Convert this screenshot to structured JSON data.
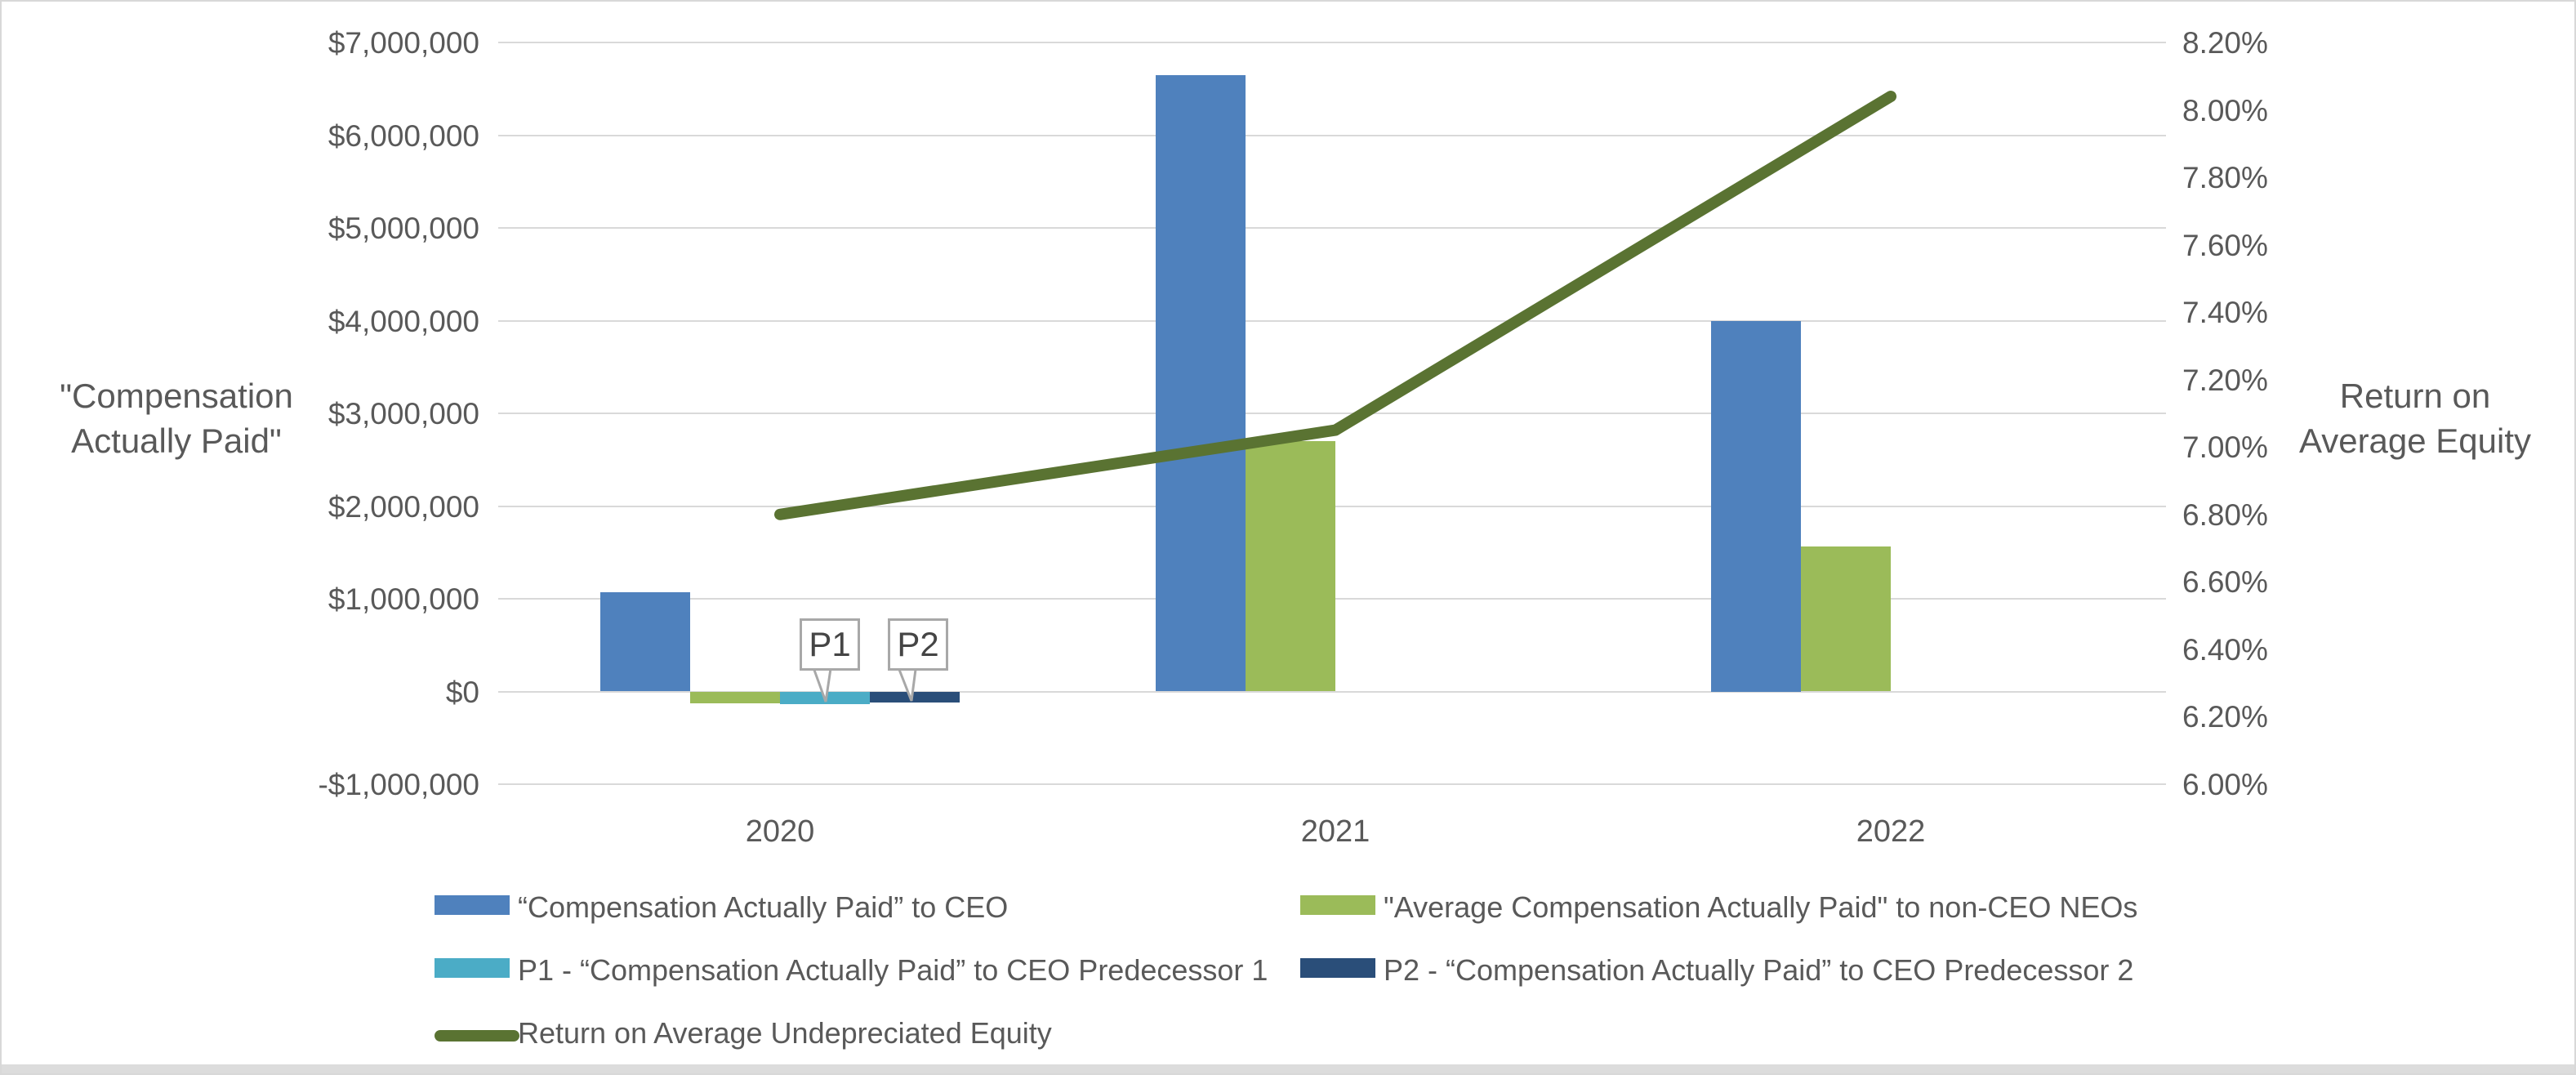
{
  "colors": {
    "ceo_bar": "#4F81BD",
    "neo_bar": "#9BBB59",
    "p1_bar": "#4BACC6",
    "p2_bar": "#2A4E79",
    "roe_line": "#5A7332",
    "gridline": "#D9D9D9",
    "text": "#595959",
    "callout_border": "#A8A8A8",
    "frame": "#D8D8D8",
    "bottom_strip": "#DCDCDC"
  },
  "chart_data": {
    "type": "bar",
    "subtype": "clustered-bar-with-line-dual-axis",
    "categories": [
      "2020",
      "2021",
      "2022"
    ],
    "series": [
      {
        "key": "ceo",
        "kind": "bar",
        "name": "“Compensation Actually Paid” to CEO",
        "color": "#4F81BD",
        "axis": "left",
        "values": [
          1070000,
          6650000,
          4000000
        ]
      },
      {
        "key": "neo",
        "kind": "bar",
        "name": "\"Average Compensation Actually Paid\" to non-CEO NEOs",
        "color": "#9BBB59",
        "axis": "left",
        "values": [
          -130000,
          2700000,
          1560000
        ]
      },
      {
        "key": "p1",
        "kind": "bar",
        "name": "P1 - “Compensation Actually Paid” to CEO Predecessor 1",
        "color": "#4BACC6",
        "axis": "left",
        "values": [
          -140000,
          0,
          0
        ]
      },
      {
        "key": "p2",
        "kind": "bar",
        "name": "P2 - “Compensation Actually Paid” to CEO Predecessor 2",
        "color": "#2A4E79",
        "axis": "left",
        "values": [
          -120000,
          0,
          0
        ]
      },
      {
        "key": "roe",
        "kind": "line",
        "name": "Return on Average Undepreciated Equity",
        "color": "#5A7332",
        "axis": "right",
        "values": [
          6.8,
          7.05,
          8.04
        ]
      }
    ],
    "left_axis": {
      "title_line1": "\"Compensation",
      "title_line2": "Actually Paid\"",
      "min": -1000000,
      "max": 7000000,
      "step": 1000000,
      "tick_labels": [
        "$7,000,000",
        "$6,000,000",
        "$5,000,000",
        "$4,000,000",
        "$3,000,000",
        "$2,000,000",
        "$1,000,000",
        "$0",
        "-$1,000,000"
      ]
    },
    "right_axis": {
      "title_line1": "Return on",
      "title_line2": "Average Equity",
      "min": 6.0,
      "max": 8.2,
      "step": 0.2,
      "tick_labels": [
        "8.20%",
        "8.00%",
        "7.80%",
        "7.60%",
        "7.40%",
        "7.20%",
        "7.00%",
        "6.80%",
        "6.60%",
        "6.40%",
        "6.20%",
        "6.00%"
      ]
    },
    "callouts": [
      {
        "label": "P1",
        "series_key": "p1",
        "category": "2020"
      },
      {
        "label": "P2",
        "series_key": "p2",
        "category": "2020"
      }
    ],
    "grid": true,
    "legend_position": "bottom"
  }
}
